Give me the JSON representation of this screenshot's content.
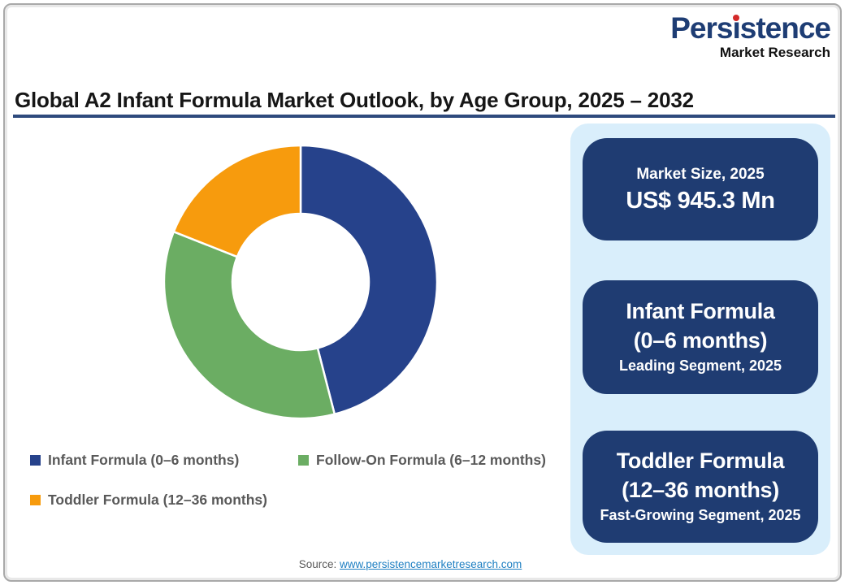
{
  "logo": {
    "brand_pre": "Pers",
    "brand_i": "ı",
    "brand_post": "stence",
    "subtitle": "Market Research",
    "brand_color": "#1e3d74",
    "dot_color": "#d42a2a"
  },
  "header": {
    "title": "Global A2 Infant Formula Market Outlook, by Age Group, 2025 – 2032",
    "rule_color": "#2e4a7d"
  },
  "chart_data": {
    "type": "pie",
    "subtype": "donut",
    "donut_hole": 0.5,
    "title": "Global A2 Infant Formula Market Outlook, by Age Group, 2025 – 2032",
    "categories": [
      "Infant Formula (0–6 months)",
      "Follow-On Formula (6–12 months)",
      "Toddler Formula (12–36 months)"
    ],
    "values": [
      46,
      35,
      19
    ],
    "values_note": "estimated % share of ring arc; no numeric labels shown in figure",
    "colors": [
      "#26428b",
      "#6bad63",
      "#f79b0d"
    ],
    "start_angle_deg": 0,
    "direction": "clockwise",
    "legend_position": "bottom-left"
  },
  "legend": {
    "items": [
      {
        "label": "Infant Formula (0–6 months)",
        "color": "#26428b"
      },
      {
        "label": "Follow-On Formula (6–12 months)",
        "color": "#6bad63"
      },
      {
        "label": "Toddler Formula (12–36 months)",
        "color": "#f79b0d"
      }
    ]
  },
  "panel": {
    "background": "#d9eefb",
    "card_background": "#1f3c72",
    "cards": [
      {
        "line1": "Market Size, 2025",
        "line2": "US$ 945.3 Mn"
      },
      {
        "line1": "Infant Formula",
        "line2": "(0–6 months)",
        "line3": "Leading Segment, 2025"
      },
      {
        "line1": "Toddler Formula",
        "line2": "(12–36 months)",
        "line3": "Fast-Growing Segment, 2025"
      }
    ]
  },
  "footer": {
    "source_prefix": "Source: ",
    "source_link": "www.persistencemarketresearch.com"
  }
}
